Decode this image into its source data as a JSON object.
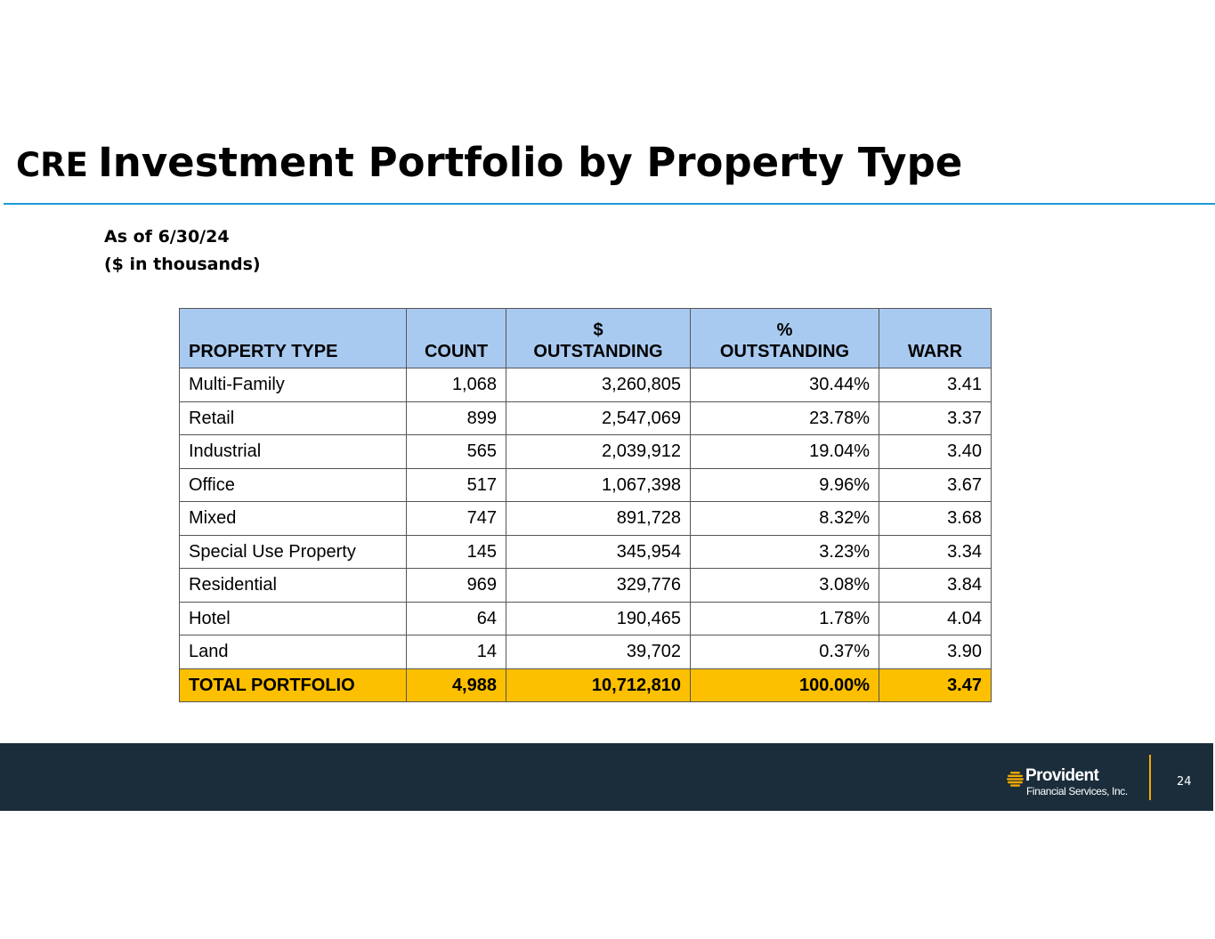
{
  "title": {
    "prefix": "CRE",
    "main": "Investment Portfolio by Property Type"
  },
  "subtitle": {
    "as_of": "As of 6/30/24",
    "units": "($ in thousands)"
  },
  "table": {
    "headers": {
      "property_type": "PROPERTY TYPE",
      "count": "COUNT",
      "dollar_line1": "$",
      "dollar_line2": "OUTSTANDING",
      "pct_line1": "%",
      "pct_line2": "OUTSTANDING",
      "warr": "WARR"
    },
    "rows": [
      {
        "property_type": "Multi-Family",
        "count": "1,068",
        "outstanding": "3,260,805",
        "pct": "30.44%",
        "warr": "3.41"
      },
      {
        "property_type": "Retail",
        "count": "899",
        "outstanding": "2,547,069",
        "pct": "23.78%",
        "warr": "3.37"
      },
      {
        "property_type": "Industrial",
        "count": "565",
        "outstanding": "2,039,912",
        "pct": "19.04%",
        "warr": "3.40"
      },
      {
        "property_type": "Office",
        "count": "517",
        "outstanding": "1,067,398",
        "pct": "9.96%",
        "warr": "3.67"
      },
      {
        "property_type": "Mixed",
        "count": "747",
        "outstanding": "891,728",
        "pct": "8.32%",
        "warr": "3.68"
      },
      {
        "property_type": "Special Use Property",
        "count": "145",
        "outstanding": "345,954",
        "pct": "3.23%",
        "warr": "3.34"
      },
      {
        "property_type": "Residential",
        "count": "969",
        "outstanding": "329,776",
        "pct": "3.08%",
        "warr": "3.84"
      },
      {
        "property_type": "Hotel",
        "count": "64",
        "outstanding": "190,465",
        "pct": "1.78%",
        "warr": "4.04"
      },
      {
        "property_type": "Land",
        "count": "14",
        "outstanding": "39,702",
        "pct": "0.37%",
        "warr": "3.90"
      }
    ],
    "total": {
      "property_type": "TOTAL PORTFOLIO",
      "count": "4,988",
      "outstanding": "10,712,810",
      "pct": "100.00%",
      "warr": "3.47"
    }
  },
  "colors": {
    "header_fill": "#a9caf0",
    "total_fill": "#fdc000",
    "title_rule": "#1f9ad6",
    "footer_bar": "#1b2d3b",
    "logo_accent": "#f2a900"
  },
  "footer": {
    "logo_name": "Provident",
    "logo_sub": "Financial Services, Inc.",
    "logo_icon": "provident-sun-icon",
    "page_number": "24"
  }
}
